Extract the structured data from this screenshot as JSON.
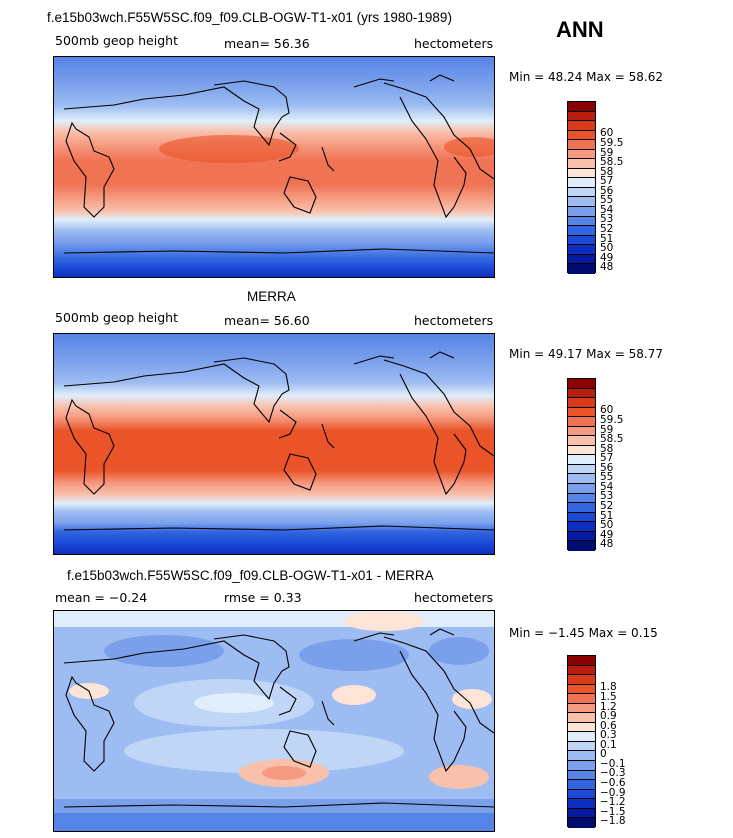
{
  "season": "ANN",
  "panels": [
    {
      "title": "f.e15b03wch.F55W5SC.f09_f09.CLB-OGW-T1-x01 (yrs 1980-1989)",
      "left_label": "500mb geop height",
      "center_label": "mean=  56.36",
      "right_label": "hectometers",
      "minmax": "Min =   48.24  Max =   58.62",
      "colorbar": {
        "colors": [
          "#8b0000",
          "#b81d0d",
          "#d93a1a",
          "#ea5428",
          "#f07454",
          "#f59a80",
          "#f9c0ac",
          "#fde4d6",
          "#dfeefa",
          "#bfd6f7",
          "#9dbcf2",
          "#7aa0ec",
          "#5683e6",
          "#3165df",
          "#1a4ad6",
          "#0d2fc0",
          "#051a9e",
          "#000b6e"
        ],
        "labels": [
          "60",
          "59.5",
          "59",
          "58.5",
          "58",
          "57",
          "56",
          "55",
          "54",
          "53",
          "52",
          "51",
          "50",
          "49",
          "48"
        ]
      }
    },
    {
      "title": "MERRA",
      "left_label": "500mb geop height",
      "center_label": "mean=  56.60",
      "right_label": "hectometers",
      "minmax": "Min =   49.17  Max =   58.77",
      "colorbar": {
        "colors": [
          "#8b0000",
          "#b81d0d",
          "#d93a1a",
          "#ea5428",
          "#f07454",
          "#f59a80",
          "#f9c0ac",
          "#fde4d6",
          "#dfeefa",
          "#bfd6f7",
          "#9dbcf2",
          "#7aa0ec",
          "#5683e6",
          "#3165df",
          "#1a4ad6",
          "#0d2fc0",
          "#051a9e",
          "#000b6e"
        ],
        "labels": [
          "60",
          "59.5",
          "59",
          "58.5",
          "58",
          "57",
          "56",
          "55",
          "54",
          "53",
          "52",
          "51",
          "50",
          "49",
          "48"
        ]
      }
    },
    {
      "title": "f.e15b03wch.F55W5SC.f09_f09.CLB-OGW-T1-x01 - MERRA",
      "left_label": "mean =   −0.24",
      "center_label": "rmse =   0.33",
      "right_label": "hectometers",
      "minmax": "Min =   −1.45  Max =    0.15",
      "colorbar": {
        "colors": [
          "#8b0000",
          "#b81d0d",
          "#d93a1a",
          "#ea5428",
          "#f07454",
          "#f59a80",
          "#f9c0ac",
          "#fde4d6",
          "#dfeefa",
          "#bfd6f7",
          "#9dbcf2",
          "#7aa0ec",
          "#5683e6",
          "#3165df",
          "#1a4ad6",
          "#0d2fc0",
          "#051a9e",
          "#000b6e"
        ],
        "labels": [
          "1.8",
          "1.5",
          "1.2",
          "0.9",
          "0.6",
          "0.3",
          "0.1",
          "0",
          "−0.1",
          "−0.3",
          "−0.6",
          "−0.9",
          "−1.2",
          "−1.5",
          "−1.8"
        ]
      }
    }
  ]
}
